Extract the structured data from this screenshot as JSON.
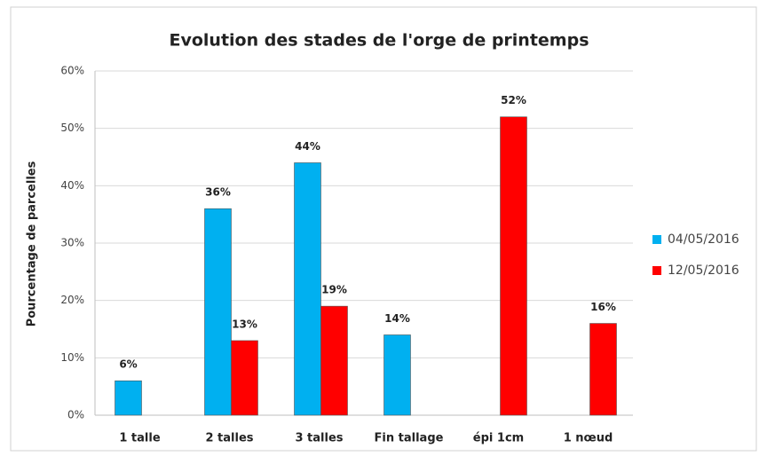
{
  "chart_data": {
    "type": "bar",
    "title": "Evolution des stades de l'orge de printemps",
    "y_label": "Pourcentage de parcelles",
    "categories": [
      "1 talle",
      "2 talles",
      "3 talles",
      "Fin tallage",
      "épi 1cm",
      "1 nœud"
    ],
    "series": [
      {
        "name": "04/05/2016",
        "color": "#00b0f0",
        "values": [
          6,
          36,
          44,
          14,
          null,
          null
        ],
        "value_labels": [
          "6%",
          "36%",
          "44%",
          "14%",
          null,
          null
        ]
      },
      {
        "name": "12/05/2016",
        "color": "#ff0000",
        "values": [
          null,
          13,
          19,
          null,
          52,
          16
        ],
        "value_labels": [
          null,
          "13%",
          "19%",
          null,
          "52%",
          "16%"
        ]
      }
    ],
    "ylim": [
      0,
      60
    ],
    "yticks": [
      {
        "value": 0,
        "label": "0%"
      },
      {
        "value": 10,
        "label": "10%"
      },
      {
        "value": 20,
        "label": "20%"
      },
      {
        "value": 30,
        "label": "30%"
      },
      {
        "value": 40,
        "label": "40%"
      },
      {
        "value": 50,
        "label": "50%"
      },
      {
        "value": 60,
        "label": "60%"
      }
    ],
    "grid": true,
    "legend": "right"
  }
}
